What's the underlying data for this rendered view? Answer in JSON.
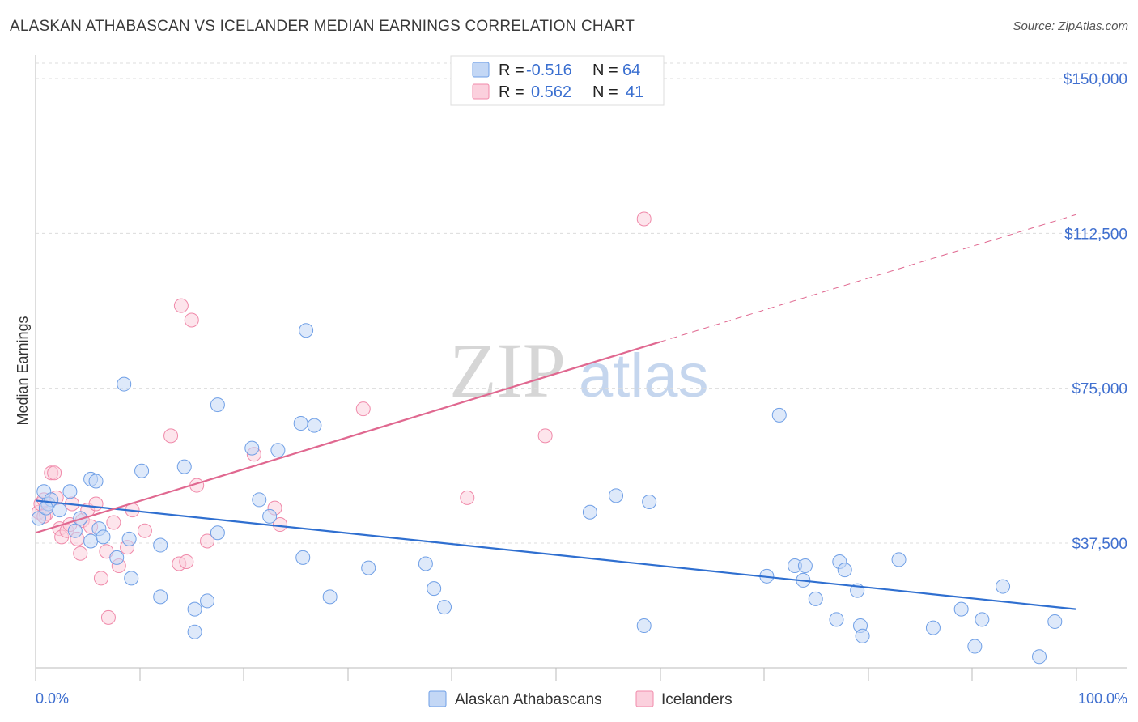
{
  "title": "ALASKAN ATHABASCAN VS ICELANDER MEDIAN EARNINGS CORRELATION CHART",
  "source": "Source: ZipAtlas.com",
  "watermark": {
    "zip": "ZIP",
    "atlas": "atlas"
  },
  "legend": {
    "rows": [
      {
        "r_label": "R =",
        "r_value": "-0.516",
        "n_label": "N =",
        "n_value": "64"
      },
      {
        "r_label": "R =",
        "r_value": "0.562",
        "n_label": "N =",
        "n_value": "41"
      }
    ]
  },
  "bottom_legend": [
    "Alaskan Athabascans",
    "Icelanders"
  ],
  "chart_data": {
    "type": "scatter",
    "title": "ALASKAN ATHABASCAN VS ICELANDER MEDIAN EARNINGS CORRELATION CHART",
    "xlabel": "",
    "ylabel": "Median Earnings",
    "xlim": [
      0,
      100
    ],
    "ylim": [
      0,
      155000
    ],
    "x_tick_labels": [
      "0.0%",
      "100.0%"
    ],
    "y_ticks": [
      37500,
      75000,
      112500,
      150000
    ],
    "y_tick_labels": [
      "$37,500",
      "$75,000",
      "$112,500",
      "$150,000"
    ],
    "grid": "horizontal dashed",
    "legend_position": "top-center",
    "colors": {
      "athabascan": "#6f9fe6",
      "icelander": "#f08aaa",
      "athabascan_line": "#2f6fd0",
      "icelander_line": "#e06890"
    },
    "series": [
      {
        "name": "Alaskan Athabascans",
        "r": -0.516,
        "n": 64,
        "trend": {
          "x": [
            0,
            100
          ],
          "y": [
            47800,
            21500
          ],
          "dashed_from": null
        },
        "points": [
          [
            0.3,
            43500
          ],
          [
            0.8,
            50000
          ],
          [
            1.2,
            47000
          ],
          [
            1.5,
            48000
          ],
          [
            2.3,
            45500
          ],
          [
            3.3,
            50000
          ],
          [
            3.8,
            40500
          ],
          [
            4.3,
            43500
          ],
          [
            5.3,
            38000
          ],
          [
            5.3,
            53000
          ],
          [
            5.8,
            52500
          ],
          [
            6.1,
            41000
          ],
          [
            6.5,
            39000
          ],
          [
            7.8,
            34000
          ],
          [
            8.5,
            76000
          ],
          [
            9.0,
            38500
          ],
          [
            9.2,
            29000
          ],
          [
            10.2,
            55000
          ],
          [
            12.0,
            37000
          ],
          [
            12.0,
            24500
          ],
          [
            14.3,
            56000
          ],
          [
            15.3,
            21500
          ],
          [
            15.3,
            16000
          ],
          [
            16.5,
            23500
          ],
          [
            17.5,
            40000
          ],
          [
            17.5,
            71000
          ],
          [
            20.8,
            60500
          ],
          [
            21.5,
            48000
          ],
          [
            22.5,
            44000
          ],
          [
            23.3,
            60000
          ],
          [
            25.5,
            66500
          ],
          [
            25.7,
            34000
          ],
          [
            26.0,
            89000
          ],
          [
            26.8,
            66000
          ],
          [
            28.3,
            24500
          ],
          [
            32.0,
            31500
          ],
          [
            37.5,
            32500
          ],
          [
            38.3,
            26500
          ],
          [
            39.3,
            22000
          ],
          [
            53.3,
            45000
          ],
          [
            55.8,
            49000
          ],
          [
            58.5,
            17500
          ],
          [
            59.0,
            47500
          ],
          [
            70.3,
            29500
          ],
          [
            71.5,
            68500
          ],
          [
            73.0,
            32000
          ],
          [
            73.8,
            28500
          ],
          [
            74.0,
            32000
          ],
          [
            75.0,
            24000
          ],
          [
            77.0,
            19000
          ],
          [
            77.3,
            33000
          ],
          [
            77.8,
            31000
          ],
          [
            79.0,
            26000
          ],
          [
            79.3,
            17500
          ],
          [
            79.5,
            15000
          ],
          [
            83.0,
            33500
          ],
          [
            86.3,
            17000
          ],
          [
            89.0,
            21500
          ],
          [
            90.3,
            12500
          ],
          [
            91.0,
            19000
          ],
          [
            93.0,
            27000
          ],
          [
            96.5,
            10000
          ],
          [
            98.0,
            18500
          ],
          [
            1.0,
            46000
          ]
        ]
      },
      {
        "name": "Icelanders",
        "r": 0.562,
        "n": 41,
        "trend": {
          "x": [
            0,
            100
          ],
          "y": [
            40000,
            117000
          ],
          "solid_until_x": 60
        },
        "points": [
          [
            0.3,
            45000
          ],
          [
            0.5,
            47000
          ],
          [
            0.8,
            48000
          ],
          [
            1.0,
            44500
          ],
          [
            1.5,
            54500
          ],
          [
            1.8,
            54500
          ],
          [
            2.0,
            48500
          ],
          [
            2.3,
            41000
          ],
          [
            2.5,
            39000
          ],
          [
            3.0,
            40500
          ],
          [
            3.3,
            42000
          ],
          [
            3.5,
            47000
          ],
          [
            4.0,
            38500
          ],
          [
            4.3,
            35000
          ],
          [
            4.5,
            43000
          ],
          [
            5.0,
            45500
          ],
          [
            5.3,
            41500
          ],
          [
            5.8,
            47000
          ],
          [
            6.3,
            29000
          ],
          [
            6.8,
            35500
          ],
          [
            7.0,
            19500
          ],
          [
            7.5,
            42500
          ],
          [
            8.0,
            32000
          ],
          [
            8.8,
            36500
          ],
          [
            9.3,
            45500
          ],
          [
            10.5,
            40500
          ],
          [
            13.0,
            63500
          ],
          [
            13.8,
            32500
          ],
          [
            14.0,
            95000
          ],
          [
            14.5,
            33000
          ],
          [
            15.0,
            91500
          ],
          [
            15.5,
            51500
          ],
          [
            16.5,
            38000
          ],
          [
            21.0,
            59000
          ],
          [
            23.0,
            46000
          ],
          [
            23.5,
            42000
          ],
          [
            31.5,
            70000
          ],
          [
            41.5,
            48500
          ],
          [
            49.0,
            63500
          ],
          [
            58.5,
            116000
          ],
          [
            0.8,
            44000
          ]
        ]
      }
    ]
  }
}
